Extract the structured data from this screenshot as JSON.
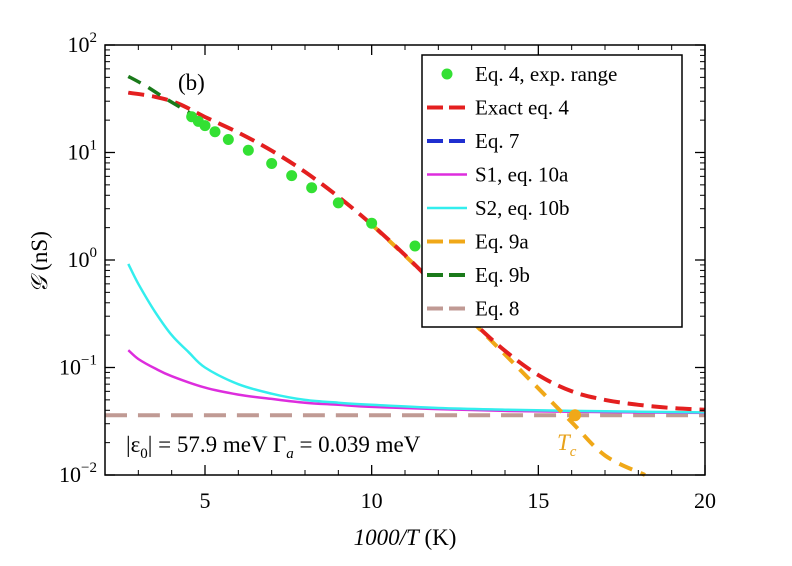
{
  "chart_data": {
    "type": "line",
    "panel_label": "(b)",
    "xlabel_italic": "1000/T",
    "xlabel_unit": " (K)",
    "ylabel_symbol": "𝒢",
    "ylabel_unit": " (nS)",
    "yscale": "log",
    "xlim": [
      2,
      20
    ],
    "ylim": [
      0.01,
      100
    ],
    "x_ticks": [
      5,
      10,
      15,
      20
    ],
    "x_tick_labels": [
      "5",
      "10",
      "15",
      "20"
    ],
    "y_ticks": [
      {
        "value": 100,
        "base": "10",
        "exp": "2"
      },
      {
        "value": 10,
        "base": "10",
        "exp": "1"
      },
      {
        "value": 1,
        "base": "10",
        "exp": "0"
      },
      {
        "value": 0.1,
        "base": "10",
        "exp": "−1"
      },
      {
        "value": 0.01,
        "base": "10",
        "exp": "−2"
      }
    ],
    "annotations": {
      "params": "|ε",
      "params_sub": "0",
      "params_rest": "| = 57.9 meV  Γ",
      "params_sub2": "a",
      "params_end": " = 0.039 meV",
      "tc_main": "T",
      "tc_sub": "c",
      "tc_color": "#e8a21a",
      "tc_x": 16.1
    },
    "series": [
      {
        "name": "Eq. 4, exp. range",
        "style": "points",
        "color": "#33e033",
        "x": [
          4.6,
          4.8,
          5.0,
          5.3,
          5.7,
          6.3,
          7.0,
          7.6,
          8.2,
          9.0,
          10.0,
          11.3
        ],
        "y": [
          21.5,
          19.5,
          17.8,
          15.6,
          13.2,
          10.5,
          7.9,
          6.1,
          4.7,
          3.4,
          2.2,
          1.35
        ]
      },
      {
        "name": "Exact eq. 4",
        "style": "dashed",
        "color": "#e41f1f",
        "x": [
          2.7,
          3.5,
          4.2,
          5,
          6,
          7,
          8,
          9,
          10,
          11,
          12,
          13,
          14,
          15,
          16,
          17,
          18,
          19,
          20
        ],
        "y": [
          36,
          33,
          28.5,
          21.4,
          15.3,
          10.4,
          6.6,
          3.88,
          2.14,
          1.11,
          0.55,
          0.272,
          0.143,
          0.085,
          0.06,
          0.05,
          0.045,
          0.042,
          0.0405
        ]
      },
      {
        "name": "Eq. 7",
        "style": "dashed",
        "color": "#1f2fd0",
        "x": [
          2.7,
          3.5,
          4.2,
          5,
          6,
          7,
          8,
          9,
          10,
          11,
          12,
          13,
          14,
          15,
          16,
          17,
          18,
          19,
          20
        ],
        "y": [
          36,
          33,
          28.5,
          21.4,
          15.3,
          10.4,
          6.6,
          3.88,
          2.14,
          1.11,
          0.55,
          0.272,
          0.143,
          0.085,
          0.06,
          0.05,
          0.045,
          0.042,
          0.0405
        ]
      },
      {
        "name": "S1, eq. 10a",
        "style": "solid",
        "color": "#dd2ddd",
        "x": [
          2.7,
          3,
          3.5,
          4,
          5,
          6,
          7,
          8,
          9,
          10,
          12,
          14,
          16,
          18,
          20
        ],
        "y": [
          0.145,
          0.12,
          0.098,
          0.083,
          0.065,
          0.056,
          0.051,
          0.047,
          0.045,
          0.043,
          0.041,
          0.0395,
          0.0388,
          0.0382,
          0.0378
        ]
      },
      {
        "name": "S2, eq. 10b",
        "style": "solid",
        "color": "#33eeee",
        "x": [
          2.7,
          3,
          3.5,
          4,
          4.5,
          5,
          6,
          7,
          8,
          9,
          10,
          12,
          14,
          16,
          18,
          20
        ],
        "y": [
          0.92,
          0.6,
          0.33,
          0.2,
          0.14,
          0.1,
          0.07,
          0.057,
          0.05,
          0.047,
          0.045,
          0.042,
          0.0405,
          0.0395,
          0.0388,
          0.0382
        ]
      },
      {
        "name": "Eq. 9a",
        "style": "dashed",
        "color": "#f0a818",
        "x": [
          10,
          11,
          12,
          13,
          14,
          15,
          16,
          17,
          18.2
        ],
        "y": [
          2.14,
          1.1,
          0.55,
          0.27,
          0.132,
          0.064,
          0.031,
          0.0152,
          0.01
        ]
      },
      {
        "name": "Eq. 9b",
        "style": "dashed",
        "color": "#1a7a1a",
        "x": [
          2.7,
          3.2,
          3.8,
          4.2,
          4.6
        ],
        "y": [
          51,
          42,
          32,
          27,
          22.8
        ]
      },
      {
        "name": "Eq. 8",
        "style": "dashed",
        "color": "#c09a94",
        "x": [
          2,
          20
        ],
        "y": [
          0.036,
          0.036
        ]
      }
    ]
  }
}
